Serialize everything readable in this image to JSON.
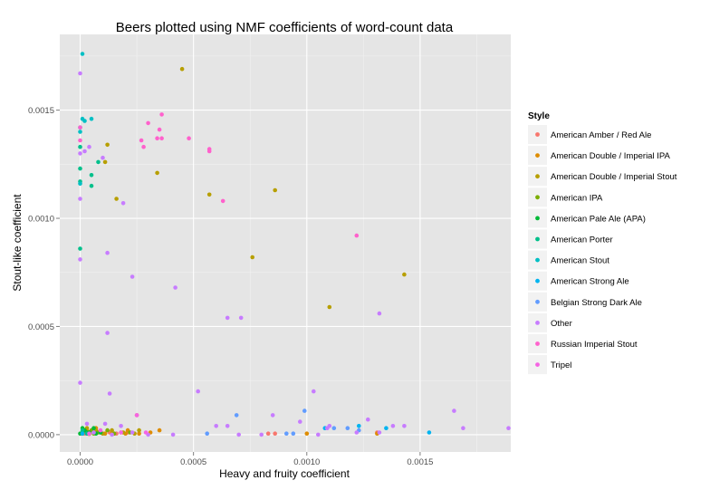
{
  "chart_data": {
    "type": "scatter",
    "title": "Beers plotted using NMF coefficients of word-count data",
    "xlabel": "Heavy and fruity coefficient",
    "ylabel": "Stout-like coefficient",
    "xlim": [
      -9e-05,
      0.0019
    ],
    "ylim": [
      -8e-05,
      0.00185
    ],
    "x_ticks": [
      {
        "value": 0.0,
        "label": "0.0000"
      },
      {
        "value": 0.0005,
        "label": "0.0005"
      },
      {
        "value": 0.001,
        "label": "0.0010"
      },
      {
        "value": 0.0015,
        "label": "0.0015"
      }
    ],
    "y_ticks": [
      {
        "value": 0.0,
        "label": "0.0000"
      },
      {
        "value": 0.0005,
        "label": "0.0005"
      },
      {
        "value": 0.001,
        "label": "0.0010"
      },
      {
        "value": 0.0015,
        "label": "0.0015"
      }
    ],
    "grid": true,
    "background": "#e5e5e5",
    "legend": {
      "title": "Style",
      "placement": "right"
    },
    "series": [
      {
        "name": "American Amber / Red Ale",
        "color": "#F8766D",
        "points": [
          [
            2e-05,
            5e-06
          ],
          [
            7e-05,
            2e-05
          ],
          [
            0.00013,
            1e-05
          ],
          [
            0.00025,
            9e-05
          ],
          [
            0.00021,
            1e-05
          ],
          [
            0.00083,
            5e-06
          ],
          [
            0.00086,
            5e-06
          ],
          [
            0.00131,
            1e-05
          ],
          [
            4e-05,
            3e-06
          ],
          [
            0.00016,
            5e-06
          ]
        ]
      },
      {
        "name": "American Double / Imperial IPA",
        "color": "#DE8C00",
        "points": [
          [
            1e-05,
            5e-06
          ],
          [
            4e-05,
            1e-05
          ],
          [
            7e-05,
            3e-05
          ],
          [
            9e-05,
            1e-05
          ],
          [
            0.00014,
            5e-06
          ],
          [
            0.00018,
            1e-05
          ],
          [
            0.00021,
            2e-05
          ],
          [
            0.00026,
            5e-06
          ],
          [
            0.00031,
            1e-05
          ],
          [
            0.00035,
            2e-05
          ],
          [
            0.001,
            5e-06
          ],
          [
            0.00131,
            5e-06
          ],
          [
            3e-05,
            2e-05
          ],
          [
            0.00011,
            5e-06
          ],
          [
            0.0002,
            5e-06
          ]
        ]
      },
      {
        "name": "American Double / Imperial Stout",
        "color": "#B79F00",
        "points": [
          [
            0.00045,
            0.00169
          ],
          [
            0.00012,
            0.00134
          ],
          [
            0.00034,
            0.00121
          ],
          [
            0.00011,
            0.00126
          ],
          [
            0.00057,
            0.00111
          ],
          [
            0.00086,
            0.00113
          ],
          [
            0.00016,
            0.00109
          ],
          [
            0.00076,
            0.00082
          ],
          [
            0.00143,
            0.00074
          ],
          [
            0.0011,
            0.00059
          ],
          [
            4e-05,
            1e-05
          ],
          [
            0.0001,
            5e-06
          ],
          [
            0.00014,
            2e-05
          ],
          [
            0.00019,
            1e-05
          ],
          [
            0.00024,
            5e-06
          ],
          [
            3e-05,
            3e-05
          ],
          [
            7e-05,
            2e-05
          ],
          [
            0.00026,
            2e-05
          ]
        ]
      },
      {
        "name": "American IPA",
        "color": "#7CAE00",
        "points": [
          [
            1e-05,
            5e-06
          ],
          [
            3e-05,
            1e-05
          ],
          [
            5e-05,
            2e-05
          ],
          [
            2e-05,
            2e-05
          ],
          [
            6e-05,
            5e-06
          ],
          [
            8e-05,
            1e-05
          ],
          [
            0.00012,
            2e-05
          ],
          [
            0.00015,
            5e-06
          ],
          [
            0.00022,
            1e-05
          ],
          [
            4e-05,
            5e-06
          ]
        ]
      },
      {
        "name": "American Pale Ale (APA)",
        "color": "#00BA38",
        "points": [
          [
            0.0,
            5e-06
          ],
          [
            2e-05,
            2e-05
          ],
          [
            4e-05,
            1e-05
          ],
          [
            6e-05,
            3e-05
          ],
          [
            9e-05,
            1e-05
          ],
          [
            3e-05,
            1e-05
          ],
          [
            1e-05,
            3e-05
          ],
          [
            7e-05,
            5e-06
          ]
        ]
      },
      {
        "name": "American Porter",
        "color": "#00C08B",
        "points": [
          [
            0.0,
            0.00133
          ],
          [
            0.0,
            0.00123
          ],
          [
            5e-05,
            0.0012
          ],
          [
            8e-05,
            0.00126
          ],
          [
            5e-05,
            0.00115
          ],
          [
            0.0,
            0.00086
          ],
          [
            0.0,
            0.00117
          ],
          [
            1e-05,
            2e-05
          ],
          [
            3e-05,
            5e-06
          ]
        ]
      },
      {
        "name": "American Stout",
        "color": "#00BFC4",
        "points": [
          [
            1e-05,
            0.00176
          ],
          [
            1e-05,
            0.00146
          ],
          [
            2e-05,
            0.00145
          ],
          [
            5e-05,
            0.00146
          ],
          [
            0.0,
            0.00142
          ],
          [
            0.0,
            0.0014
          ],
          [
            0.0,
            0.00116
          ]
        ]
      },
      {
        "name": "American Strong Ale",
        "color": "#00B4F0",
        "points": [
          [
            0.00123,
            4e-05
          ],
          [
            0.00135,
            3e-05
          ],
          [
            0.00154,
            1e-05
          ],
          [
            0.00108,
            3e-05
          ],
          [
            1e-05,
            5e-06
          ]
        ]
      },
      {
        "name": "Belgian Strong Dark Ale",
        "color": "#619CFF",
        "points": [
          [
            0.00099,
            0.00011
          ],
          [
            0.00069,
            9e-05
          ],
          [
            0.00118,
            3e-05
          ],
          [
            0.00123,
            2e-05
          ],
          [
            0.00112,
            3e-05
          ],
          [
            0.00094,
            5e-06
          ],
          [
            0.00056,
            5e-06
          ],
          [
            0.00091,
            5e-06
          ]
        ]
      },
      {
        "name": "Other",
        "color": "#C77CFF",
        "points": [
          [
            0.0,
            0.00167
          ],
          [
            0.0,
            0.0013
          ],
          [
            2e-05,
            0.00131
          ],
          [
            4e-05,
            0.00133
          ],
          [
            0.0001,
            0.00128
          ],
          [
            0.00019,
            0.00107
          ],
          [
            0.0,
            0.00109
          ],
          [
            0.0,
            0.00081
          ],
          [
            0.00012,
            0.00084
          ],
          [
            0.00023,
            0.00073
          ],
          [
            0.00042,
            0.00068
          ],
          [
            0.00065,
            0.00054
          ],
          [
            0.00071,
            0.00054
          ],
          [
            0.00132,
            0.00056
          ],
          [
            0.00012,
            0.00047
          ],
          [
            0.0,
            0.00024
          ],
          [
            0.00052,
            0.0002
          ],
          [
            0.00103,
            0.0002
          ],
          [
            0.00013,
            0.00019
          ],
          [
            0.0006,
            4e-05
          ],
          [
            0.00065,
            4e-05
          ],
          [
            0.00085,
            9e-05
          ],
          [
            0.00097,
            6e-05
          ],
          [
            0.00109,
            3e-05
          ],
          [
            0.0011,
            4e-05
          ],
          [
            0.00127,
            7e-05
          ],
          [
            0.00138,
            4e-05
          ],
          [
            0.00143,
            4e-05
          ],
          [
            0.00165,
            0.00011
          ],
          [
            0.00169,
            3e-05
          ],
          [
            0.00189,
            3e-05
          ],
          [
            3e-05,
            5e-05
          ],
          [
            0.00011,
            5e-05
          ],
          [
            0.00018,
            4e-05
          ],
          [
            0.00023,
            1e-05
          ],
          [
            0.0003,
            0.0
          ],
          [
            0.00041,
            0.0
          ],
          [
            0.0007,
            0.0
          ],
          [
            0.0008,
            0.0
          ],
          [
            0.00105,
            0.0
          ],
          [
            0.00122,
            1e-05
          ],
          [
            0.00132,
            1e-05
          ],
          [
            6e-05,
            1e-05
          ],
          [
            0.00014,
            0.0
          ]
        ]
      },
      {
        "name": "Russian Imperial Stout",
        "color": "#FF61CC",
        "points": [
          [
            0.0,
            0.00142
          ],
          [
            0.0003,
            0.00144
          ],
          [
            0.00036,
            0.00148
          ],
          [
            0.00035,
            0.00141
          ],
          [
            0.00034,
            0.00137
          ],
          [
            0.00036,
            0.00137
          ],
          [
            0.00027,
            0.00136
          ],
          [
            0.00048,
            0.00137
          ],
          [
            0.00028,
            0.00133
          ],
          [
            0.00057,
            0.00131
          ],
          [
            0.00057,
            0.00132
          ],
          [
            0.00063,
            0.00108
          ],
          [
            0.00122,
            0.00092
          ],
          [
            0.0,
            0.00136
          ]
        ]
      },
      {
        "name": "Tripel",
        "color": "#F564E3",
        "points": [
          [
            0.00025,
            9e-05
          ],
          [
            0.00018,
            1e-05
          ],
          [
            0.00029,
            1e-05
          ],
          [
            4e-05,
            5e-06
          ],
          [
            9e-05,
            2e-05
          ]
        ]
      }
    ]
  }
}
